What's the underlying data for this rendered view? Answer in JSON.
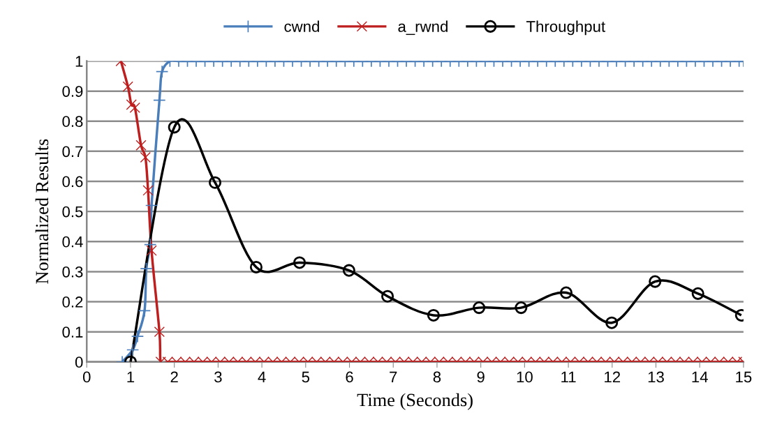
{
  "chart_data": {
    "type": "line",
    "xlabel": "Time (Seconds)",
    "ylabel": "Normalized Results",
    "xlim": [
      0,
      15
    ],
    "xticks": [
      0,
      1,
      2,
      3,
      4,
      5,
      6,
      7,
      8,
      9,
      10,
      11,
      12,
      13,
      14,
      15
    ],
    "ylim": [
      0,
      1
    ],
    "yticks": [
      0,
      0.1,
      0.2,
      0.3,
      0.4,
      0.5,
      0.6,
      0.7,
      0.8,
      0.9,
      1
    ],
    "grid": "y",
    "legend": "top",
    "line_style": "solid",
    "series": [
      {
        "name": "cwnd",
        "color": "#4a7ebb",
        "marker": "plus",
        "x": [
          0.81,
          1.05,
          1.16,
          1.32,
          1.36,
          1.45,
          1.48,
          1.66,
          1.72,
          1.9,
          2.1,
          2.3,
          2.5,
          2.7,
          2.9,
          3.1,
          3.3,
          3.5,
          3.7,
          3.9,
          4.1,
          4.3,
          4.5,
          4.7,
          4.9,
          5.1,
          5.3,
          5.5,
          5.7,
          5.9,
          6.1,
          6.3,
          6.5,
          6.7,
          6.9,
          7.1,
          7.3,
          7.5,
          7.7,
          7.9,
          8.1,
          8.3,
          8.5,
          8.7,
          8.9,
          9.1,
          9.3,
          9.5,
          9.7,
          9.9,
          10.1,
          10.3,
          10.5,
          10.7,
          10.9,
          11.1,
          11.3,
          11.5,
          11.7,
          11.9,
          12.1,
          12.3,
          12.5,
          12.7,
          12.9,
          13.1,
          13.3,
          13.5,
          13.7,
          13.9,
          14.1,
          14.3,
          14.5,
          14.7,
          14.9,
          15.0
        ],
        "values": [
          0,
          0.04,
          0.085,
          0.17,
          0.31,
          0.39,
          0.52,
          0.87,
          0.965,
          1,
          1,
          1,
          1,
          1,
          1,
          1,
          1,
          1,
          1,
          1,
          1,
          1,
          1,
          1,
          1,
          1,
          1,
          1,
          1,
          1,
          1,
          1,
          1,
          1,
          1,
          1,
          1,
          1,
          1,
          1,
          1,
          1,
          1,
          1,
          1,
          1,
          1,
          1,
          1,
          1,
          1,
          1,
          1,
          1,
          1,
          1,
          1,
          1,
          1,
          1,
          1,
          1,
          1,
          1,
          1,
          1,
          1,
          1,
          1,
          1,
          1,
          1,
          1,
          1,
          1,
          1
        ]
      },
      {
        "name": "a_rwnd",
        "color": "#be1e1e",
        "marker": "cross",
        "x": [
          0.78,
          0.94,
          1.02,
          1.1,
          1.24,
          1.34,
          1.4,
          1.48,
          1.66,
          1.69,
          1.85,
          2.05,
          2.25,
          2.45,
          2.65,
          2.85,
          3.05,
          3.25,
          3.45,
          3.65,
          3.85,
          4.05,
          4.25,
          4.45,
          4.65,
          4.85,
          5.05,
          5.25,
          5.45,
          5.65,
          5.85,
          6.05,
          6.25,
          6.45,
          6.65,
          6.85,
          7.05,
          7.25,
          7.45,
          7.65,
          7.85,
          8.05,
          8.25,
          8.45,
          8.65,
          8.85,
          9.05,
          9.25,
          9.45,
          9.65,
          9.85,
          10.05,
          10.25,
          10.45,
          10.65,
          10.85,
          11.05,
          11.25,
          11.45,
          11.65,
          11.85,
          12.05,
          12.25,
          12.45,
          12.65,
          12.85,
          13.05,
          13.25,
          13.45,
          13.65,
          13.85,
          14.05,
          14.25,
          14.45,
          14.65,
          14.85,
          15.0
        ],
        "values": [
          1,
          0.915,
          0.855,
          0.845,
          0.72,
          0.68,
          0.57,
          0.37,
          0.1,
          0,
          0,
          0,
          0,
          0,
          0,
          0,
          0,
          0,
          0,
          0,
          0,
          0,
          0,
          0,
          0,
          0,
          0,
          0,
          0,
          0,
          0,
          0,
          0,
          0,
          0,
          0,
          0,
          0,
          0,
          0,
          0,
          0,
          0,
          0,
          0,
          0,
          0,
          0,
          0,
          0,
          0,
          0,
          0,
          0,
          0,
          0,
          0,
          0,
          0,
          0,
          0,
          0,
          0,
          0,
          0,
          0,
          0,
          0,
          0,
          0,
          0,
          0,
          0,
          0,
          0,
          0,
          0
        ]
      },
      {
        "name": "Throughput",
        "color": "#000000",
        "marker": "circle",
        "x": [
          1.0,
          2.0,
          2.93,
          3.87,
          4.86,
          5.99,
          6.87,
          7.92,
          8.96,
          9.92,
          10.95,
          11.99,
          12.98,
          13.96,
          14.95
        ],
        "values": [
          0,
          0.78,
          0.596,
          0.315,
          0.33,
          0.304,
          0.218,
          0.155,
          0.18,
          0.18,
          0.23,
          0.13,
          0.267,
          0.227,
          0.155
        ]
      }
    ]
  }
}
